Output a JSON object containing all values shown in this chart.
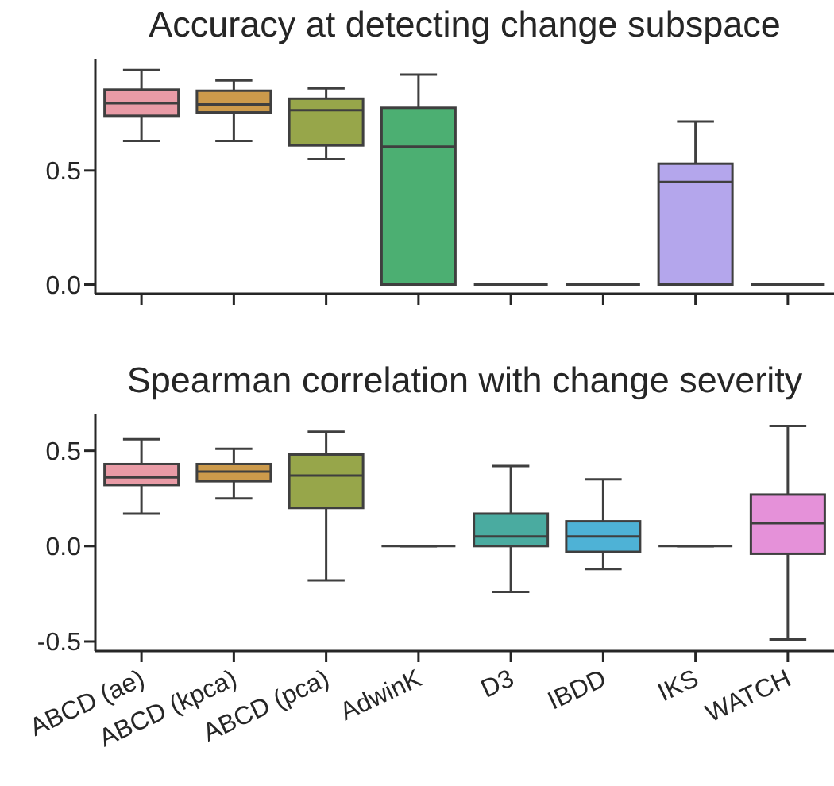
{
  "chart_data": [
    {
      "type": "box",
      "title": "Accuracy at detecting change subspace",
      "categories": [
        null,
        null,
        null,
        null,
        null,
        null,
        null,
        null
      ],
      "colors": [
        "#e99ba6",
        "#cc9a4b",
        "#97a64a",
        "#4caf72",
        null,
        null,
        "#b4a6ec",
        null
      ],
      "boxes": [
        {
          "low": 0.63,
          "q1": 0.74,
          "median": 0.795,
          "q3": 0.855,
          "high": 0.94
        },
        {
          "low": 0.63,
          "q1": 0.755,
          "median": 0.79,
          "q3": 0.85,
          "high": 0.895
        },
        {
          "low": 0.55,
          "q1": 0.61,
          "median": 0.765,
          "q3": 0.815,
          "high": 0.86
        },
        {
          "low": 0,
          "q1": 0,
          "median": 0.605,
          "q3": 0.775,
          "high": 0.92
        },
        {
          "low": 0,
          "q1": 0,
          "median": 0,
          "q3": 0,
          "high": 0
        },
        {
          "low": 0,
          "q1": 0,
          "median": 0,
          "q3": 0,
          "high": 0
        },
        {
          "low": 0,
          "q1": 0,
          "median": 0.45,
          "q3": 0.53,
          "high": 0.715
        },
        {
          "low": 0,
          "q1": 0,
          "median": 0,
          "q3": 0,
          "high": 0
        }
      ],
      "ylim": [
        -0.04,
        0.99
      ],
      "yticks": [
        {
          "value": 0,
          "label": "0.0"
        },
        {
          "value": 0.5,
          "label": "0.5"
        }
      ],
      "tick_labels": "y"
    },
    {
      "type": "box",
      "title": "Spearman correlation with change severity",
      "categories": [
        "ABCD (ae)",
        "ABCD (kpca)",
        "ABCD (pca)",
        "AdwinK",
        "D3",
        "IBDD",
        "IKS",
        "WATCH"
      ],
      "colors": [
        "#e99ba6",
        "#cc9a4b",
        "#97a64a",
        null,
        "#4aaba0",
        "#4eb2d6",
        null,
        "#e591d9"
      ],
      "boxes": [
        {
          "low": 0.17,
          "q1": 0.32,
          "median": 0.36,
          "q3": 0.43,
          "high": 0.56
        },
        {
          "low": 0.25,
          "q1": 0.34,
          "median": 0.39,
          "q3": 0.43,
          "high": 0.51
        },
        {
          "low": -0.18,
          "q1": 0.2,
          "median": 0.37,
          "q3": 0.48,
          "high": 0.6
        },
        {
          "low": 0,
          "q1": 0,
          "median": 0,
          "q3": 0,
          "high": 0
        },
        {
          "low": -0.24,
          "q1": 0,
          "median": 0.05,
          "q3": 0.17,
          "high": 0.42
        },
        {
          "low": -0.12,
          "q1": -0.03,
          "median": 0.05,
          "q3": 0.13,
          "high": 0.35
        },
        {
          "low": 0,
          "q1": 0,
          "median": 0,
          "q3": 0,
          "high": 0
        },
        {
          "low": -0.49,
          "q1": -0.04,
          "median": 0.12,
          "q3": 0.27,
          "high": 0.63
        }
      ],
      "ylim": [
        -0.55,
        0.69
      ],
      "yticks": [
        {
          "value": -0.5,
          "label": "-0.5"
        },
        {
          "value": 0,
          "label": "0.0"
        },
        {
          "value": 0.5,
          "label": "0.5"
        }
      ]
    }
  ]
}
